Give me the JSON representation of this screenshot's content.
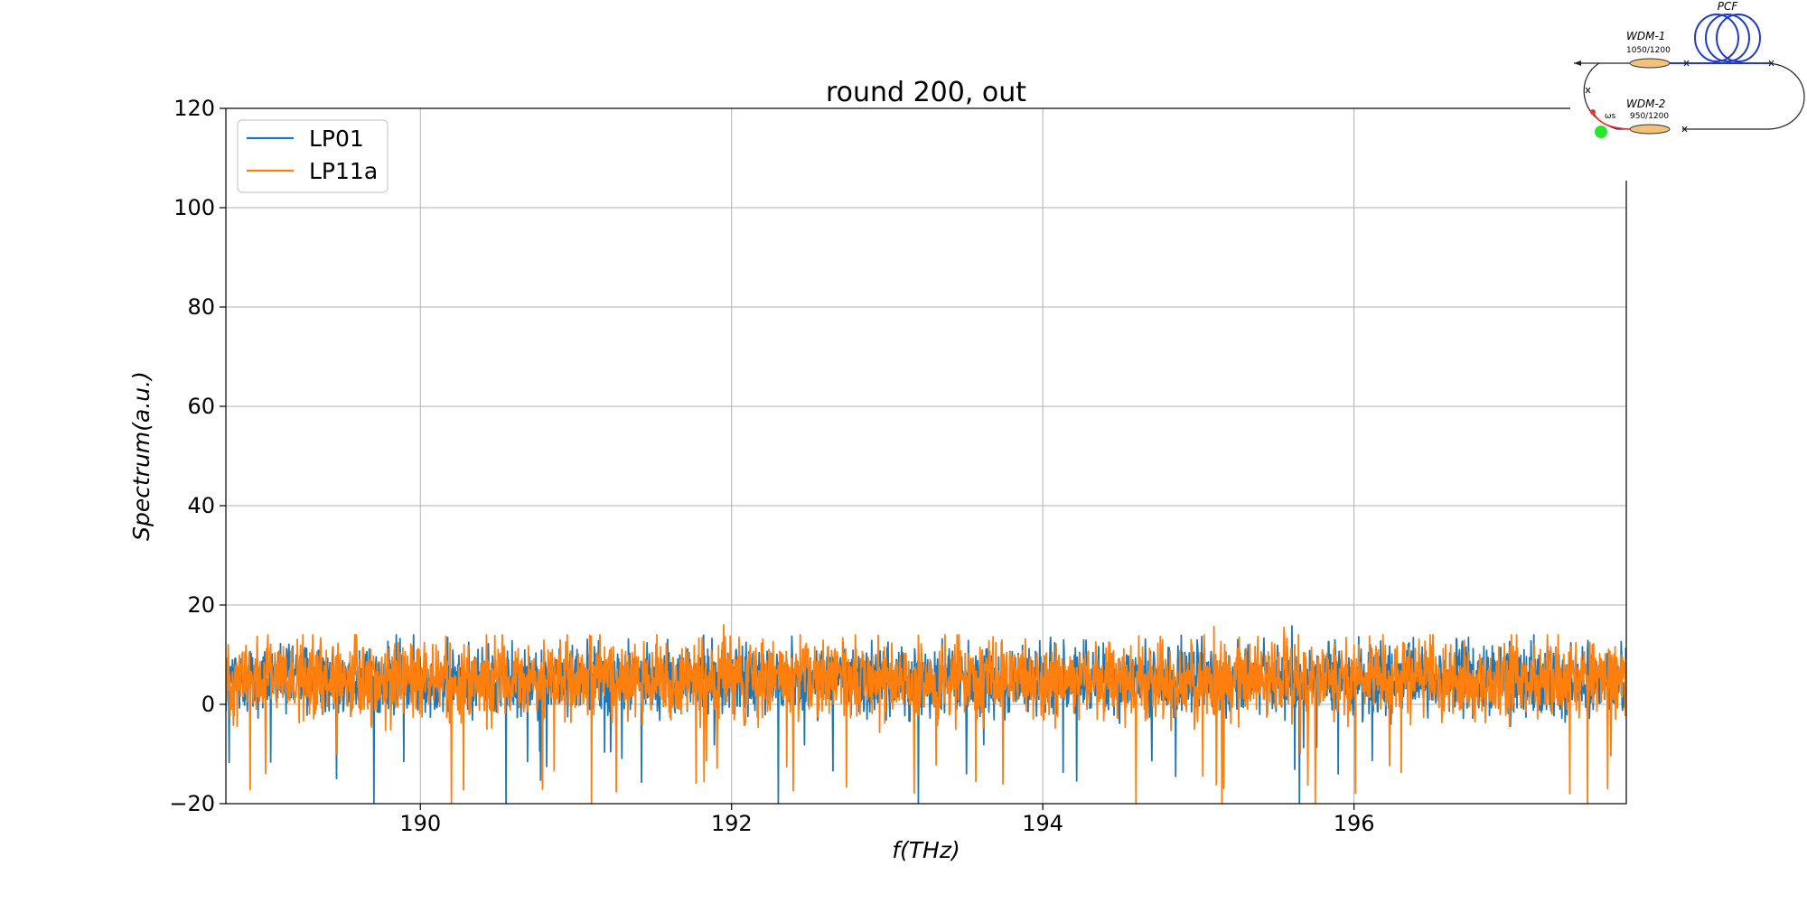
{
  "chart_data": {
    "type": "line",
    "title": "round 200, out",
    "xlabel": "f(THz)",
    "ylabel": "Spectrum(a.u.)",
    "xlim": [
      188.75,
      197.75
    ],
    "ylim": [
      -20,
      120
    ],
    "x_ticks": [
      "190",
      "192",
      "194",
      "196"
    ],
    "y_ticks": [
      "−20",
      "0",
      "20",
      "40",
      "60",
      "80",
      "100",
      "120"
    ],
    "grid": true,
    "legend_position": "top-left",
    "x_start": 188.75,
    "x_end": 197.75,
    "series": [
      {
        "name": "LP01",
        "color": "#1f77b4",
        "description": "noise around ~5 a.u.",
        "mean": 5,
        "typical_range": [
          -8,
          13
        ],
        "peaks": [
          [
            189.7,
            17.2
          ],
          [
            194.05,
            13.5
          ],
          [
            195.6,
            15.8
          ]
        ],
        "dips": [
          [
            189.7,
            -20
          ],
          [
            190.55,
            -20
          ],
          [
            192.3,
            -20
          ],
          [
            193.2,
            -20
          ],
          [
            195.65,
            -20
          ]
        ]
      },
      {
        "name": "LP11a",
        "color": "#ff7f0e",
        "description": "noise around ~5 a.u.",
        "mean": 5,
        "typical_range": [
          -10,
          13
        ],
        "peaks": [
          [
            191.95,
            16.0
          ],
          [
            195.1,
            15.7
          ],
          [
            195.55,
            15.5
          ]
        ],
        "dips": [
          [
            190.2,
            -20
          ],
          [
            191.1,
            -20
          ],
          [
            194.6,
            -20
          ],
          [
            195.15,
            -20
          ],
          [
            195.75,
            -20
          ],
          [
            197.5,
            -20
          ]
        ]
      }
    ]
  },
  "inset": {
    "pcf_label": "PCF",
    "wdm1_label": "WDM-1",
    "wdm1_spec": "1050/1200",
    "wdm2_label": "WDM-2",
    "wdm2_spec": "950/1200",
    "omega_label": "ωs"
  }
}
